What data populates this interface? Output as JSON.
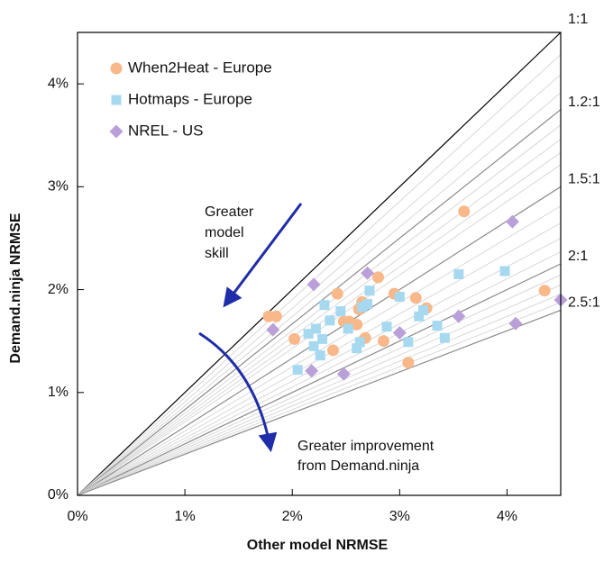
{
  "chart_data": {
    "type": "scatter",
    "xlabel": "Other model NRMSE",
    "ylabel": "Demand.ninja NRMSE",
    "xlim": [
      0,
      4.5
    ],
    "ylim": [
      0,
      4.5
    ],
    "x_ticks": [
      {
        "value": 0,
        "label": "0%"
      },
      {
        "value": 1,
        "label": "1%"
      },
      {
        "value": 2,
        "label": "2%"
      },
      {
        "value": 3,
        "label": "3%"
      },
      {
        "value": 4,
        "label": "4%"
      }
    ],
    "y_ticks": [
      {
        "value": 0,
        "label": "0%"
      },
      {
        "value": 1,
        "label": "1%"
      },
      {
        "value": 2,
        "label": "2%"
      },
      {
        "value": 3,
        "label": "3%"
      },
      {
        "value": 4,
        "label": "4%"
      }
    ],
    "legend_position": "top-left",
    "series": [
      {
        "name": "When2Heat - Europe",
        "marker": "circle",
        "color": "#F8B88A",
        "points": [
          [
            1.78,
            1.74
          ],
          [
            1.85,
            1.74
          ],
          [
            2.02,
            1.52
          ],
          [
            2.42,
            1.96
          ],
          [
            2.38,
            1.41
          ],
          [
            2.48,
            1.69
          ],
          [
            2.53,
            1.69
          ],
          [
            2.6,
            1.66
          ],
          [
            2.62,
            1.81
          ],
          [
            2.65,
            1.88
          ],
          [
            2.68,
            1.53
          ],
          [
            2.8,
            2.12
          ],
          [
            2.85,
            1.5
          ],
          [
            2.95,
            1.96
          ],
          [
            3.08,
            1.29
          ],
          [
            3.15,
            1.92
          ],
          [
            3.25,
            1.82
          ],
          [
            3.6,
            2.76
          ],
          [
            4.35,
            1.99
          ]
        ]
      },
      {
        "name": "Hotmaps - Europe",
        "marker": "square",
        "color": "#A6D9F0",
        "points": [
          [
            2.05,
            1.22
          ],
          [
            2.15,
            1.57
          ],
          [
            2.2,
            1.45
          ],
          [
            2.22,
            1.62
          ],
          [
            2.26,
            1.36
          ],
          [
            2.28,
            1.52
          ],
          [
            2.3,
            1.85
          ],
          [
            2.35,
            1.7
          ],
          [
            2.45,
            1.79
          ],
          [
            2.52,
            1.62
          ],
          [
            2.6,
            1.43
          ],
          [
            2.63,
            1.49
          ],
          [
            2.65,
            1.83
          ],
          [
            2.7,
            1.86
          ],
          [
            2.72,
            1.99
          ],
          [
            2.88,
            1.64
          ],
          [
            3.0,
            1.93
          ],
          [
            3.08,
            1.49
          ],
          [
            3.18,
            1.74
          ],
          [
            3.22,
            1.8
          ],
          [
            3.35,
            1.65
          ],
          [
            3.42,
            1.53
          ],
          [
            3.55,
            2.15
          ],
          [
            3.98,
            2.18
          ]
        ]
      },
      {
        "name": "NREL - US",
        "marker": "diamond",
        "color": "#B9A0D8",
        "points": [
          [
            1.82,
            1.61
          ],
          [
            2.18,
            1.21
          ],
          [
            2.2,
            2.05
          ],
          [
            2.48,
            1.18
          ],
          [
            2.7,
            2.16
          ],
          [
            3.0,
            1.58
          ],
          [
            3.55,
            1.74
          ],
          [
            4.05,
            2.66
          ],
          [
            4.08,
            1.67
          ],
          [
            4.5,
            1.9
          ]
        ]
      }
    ],
    "ratio_lines": [
      {
        "label": "1:1",
        "ratio": 1.0,
        "style": "major"
      },
      {
        "label": "",
        "ratio": 0.9524,
        "style": "minor"
      },
      {
        "label": "",
        "ratio": 0.9091,
        "style": "minor"
      },
      {
        "label": "",
        "ratio": 0.8696,
        "style": "minor"
      },
      {
        "label": "1.2:1",
        "ratio": 0.8333,
        "style": "medium"
      },
      {
        "label": "",
        "ratio": 0.8,
        "style": "minor"
      },
      {
        "label": "",
        "ratio": 0.7692,
        "style": "minor"
      },
      {
        "label": "",
        "ratio": 0.7407,
        "style": "minor"
      },
      {
        "label": "",
        "ratio": 0.7143,
        "style": "minor"
      },
      {
        "label": "1.5:1",
        "ratio": 0.6667,
        "style": "medium"
      },
      {
        "label": "",
        "ratio": 0.625,
        "style": "minor"
      },
      {
        "label": "",
        "ratio": 0.5882,
        "style": "minor"
      },
      {
        "label": "",
        "ratio": 0.5556,
        "style": "minor"
      },
      {
        "label": "",
        "ratio": 0.5263,
        "style": "minor"
      },
      {
        "label": "2:1",
        "ratio": 0.5,
        "style": "medium"
      },
      {
        "label": "",
        "ratio": 0.4762,
        "style": "minor"
      },
      {
        "label": "",
        "ratio": 0.4545,
        "style": "minor"
      },
      {
        "label": "",
        "ratio": 0.4348,
        "style": "minor"
      },
      {
        "label": "",
        "ratio": 0.4167,
        "style": "minor"
      },
      {
        "label": "2.5:1",
        "ratio": 0.4,
        "style": "medium"
      }
    ],
    "annotations": [
      {
        "lines": [
          "Greater",
          "model",
          "skill"
        ]
      },
      {
        "lines": [
          "Greater improvement",
          "from Demand.ninja"
        ]
      }
    ]
  }
}
